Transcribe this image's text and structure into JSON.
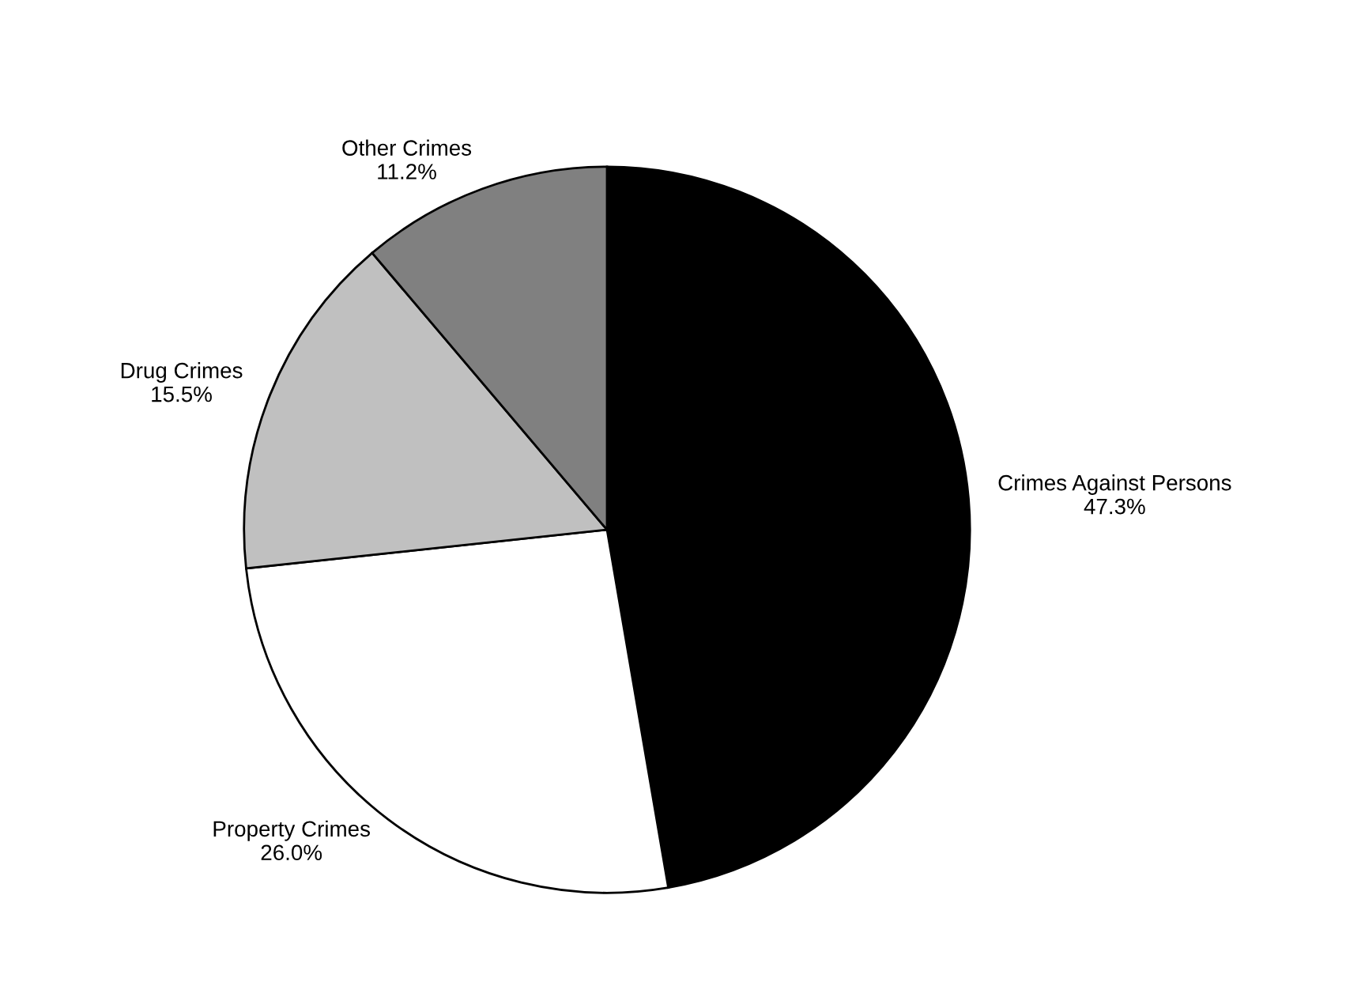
{
  "chart_data": {
    "type": "pie",
    "categories": [
      "Crimes Against Persons",
      "Property Crimes",
      "Drug Crimes",
      "Other Crimes"
    ],
    "values": [
      47.3,
      26.0,
      15.5,
      11.2
    ],
    "value_labels": [
      "47.3%",
      "26.0%",
      "15.5%",
      "11.2%"
    ],
    "colors": [
      "#000000",
      "#ffffff",
      "#c0c0c0",
      "#808080"
    ]
  }
}
